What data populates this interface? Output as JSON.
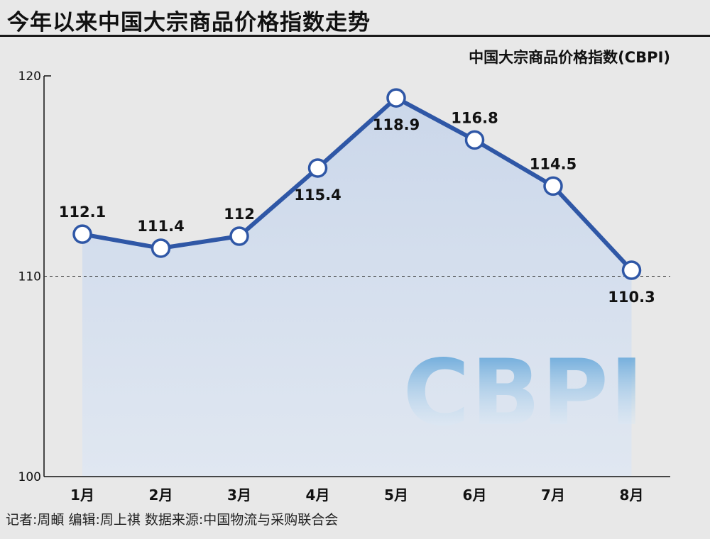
{
  "header": {
    "title": "今年以来中国大宗商品价格指数走势"
  },
  "footer": {
    "source": "记者:周頔  编辑:周上祺  数据来源:中国物流与采购联合会"
  },
  "watermark": "CBPI",
  "colors": {
    "line": "#2f57a6",
    "area_top": "#c9d6ea",
    "background": "#e8e8e8",
    "watermark": "#3a8fd0"
  },
  "chart_data": {
    "type": "line",
    "title": "中国大宗商品价格指数(CBPI)",
    "xlabel": "",
    "ylabel": "",
    "categories": [
      "1月",
      "2月",
      "3月",
      "4月",
      "5月",
      "6月",
      "7月",
      "8月"
    ],
    "series": [
      {
        "name": "",
        "values": [
          112.1,
          111.4,
          112,
          115.4,
          118.9,
          116.8,
          114.5,
          110.3
        ],
        "labels": [
          "112.1",
          "111.4",
          "112",
          "115.4",
          "118.9",
          "116.8",
          "114.5",
          "110.3"
        ]
      }
    ],
    "ylim": [
      100,
      120
    ],
    "yticks": [
      "100",
      "110",
      "120"
    ],
    "reference_line": 110,
    "grid": false,
    "legend": "none"
  }
}
